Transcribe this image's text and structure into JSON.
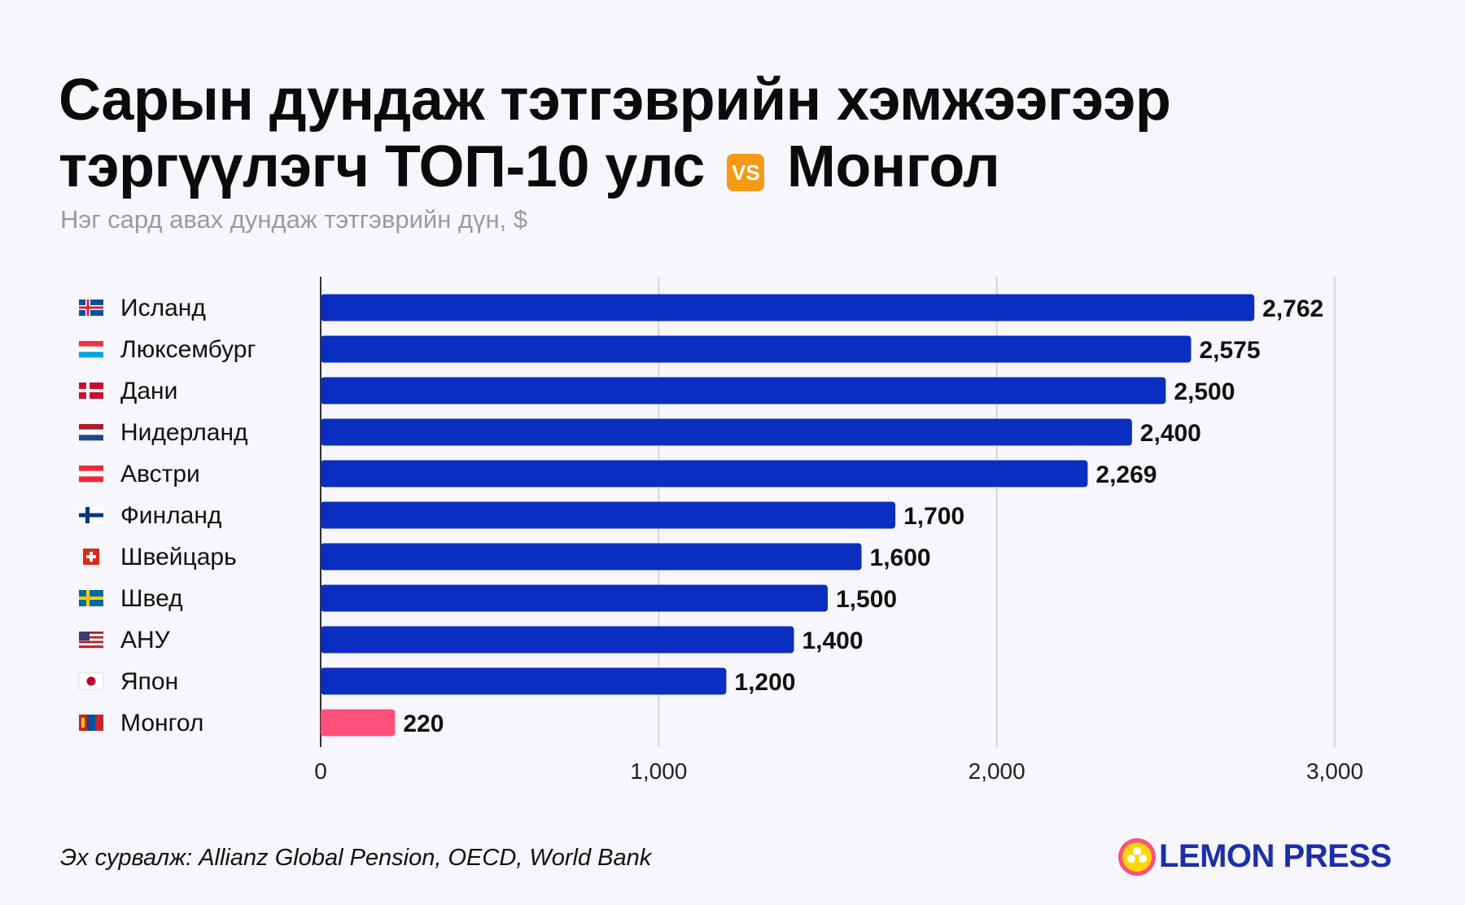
{
  "header": {
    "title_line1": "Сарын дундаж тэтгэврийн хэмжээгээр",
    "title_line2_a": "тэргүүлэгч ТОП-10 улс",
    "vs_label": "VS",
    "title_line2_b": "Монгол",
    "subtitle": "Нэг сард авах дундаж тэтгэврийн дүн, $"
  },
  "chart_data": {
    "type": "bar",
    "orientation": "horizontal",
    "title": "Сарын дундаж тэтгэврийн хэмжээгээр тэргүүлэгч ТОП-10 улс VS Монгол",
    "subtitle": "Нэг сард авах дундаж тэтгэврийн дүн, $",
    "categories": [
      "Исланд",
      "Люксембург",
      "Дани",
      "Нидерланд",
      "Австри",
      "Финланд",
      "Швейцарь",
      "Швед",
      "АНУ",
      "Япон",
      "Монгол"
    ],
    "values": [
      2762,
      2575,
      2500,
      2400,
      2269,
      1700,
      1600,
      1500,
      1400,
      1200,
      220
    ],
    "value_labels": [
      "2,762",
      "2,575",
      "2,500",
      "2,400",
      "2,269",
      "1,700",
      "1,600",
      "1,500",
      "1,400",
      "1,200",
      "220"
    ],
    "flags": [
      "iceland",
      "luxembourg",
      "denmark",
      "netherlands",
      "austria",
      "finland",
      "switzerland",
      "sweden",
      "usa",
      "japan",
      "mongolia"
    ],
    "xlim": [
      0,
      3000
    ],
    "xticks": [
      0,
      1000,
      2000,
      3000
    ],
    "xtick_labels": [
      "0",
      "1,000",
      "2,000",
      "3,000"
    ],
    "grid": true,
    "bar_color": "#0a2ec0",
    "highlight_color": "#ff4f7b",
    "highlight_category": "Монгол"
  },
  "footer": {
    "source": "Эх сурвалж: Allianz Global Pension, OECD, World Bank",
    "logo": "LEMON PRESS"
  }
}
